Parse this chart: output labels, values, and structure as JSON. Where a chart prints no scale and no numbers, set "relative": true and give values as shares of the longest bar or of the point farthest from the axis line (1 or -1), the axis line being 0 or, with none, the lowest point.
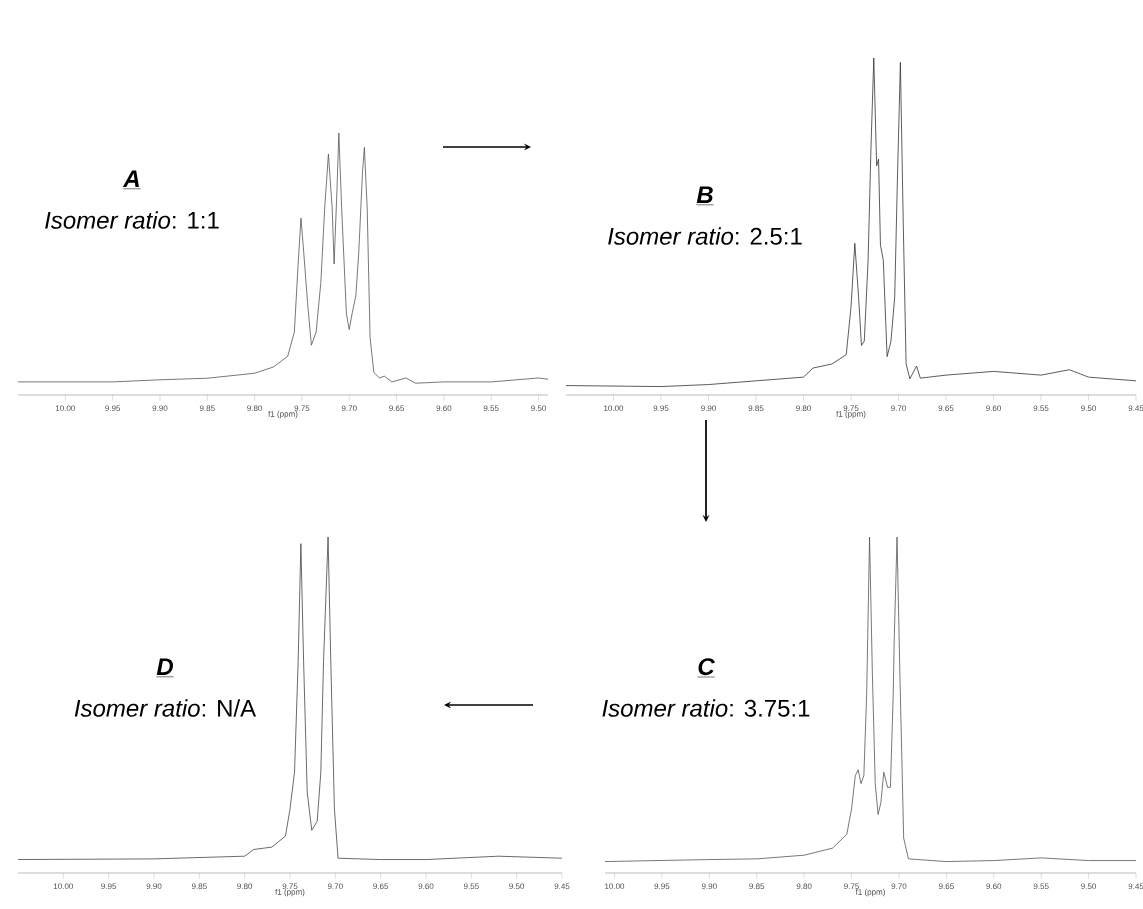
{
  "chart_data": [
    {
      "type": "line",
      "title": "A",
      "subtitle": "*Isomer ratio*: 1:1",
      "xlabel": "f1 (ppm)",
      "color": "#555555",
      "relative": true,
      "xlim": [
        10.05,
        9.49
      ],
      "xticks": [
        {
          "value": 10,
          "label": "10.00"
        },
        {
          "value": 9.95,
          "label": "9.95"
        },
        {
          "value": 9.9,
          "label": "9.90"
        },
        {
          "value": 9.85,
          "label": "9.85"
        },
        {
          "value": 9.8,
          "label": "9.80"
        },
        {
          "value": 9.75,
          "label": "9.75"
        },
        {
          "value": 9.7,
          "label": "9.70"
        },
        {
          "value": 9.65,
          "label": "9.65"
        },
        {
          "value": 9.6,
          "label": "9.60"
        },
        {
          "value": 9.55,
          "label": "9.55"
        },
        {
          "value": 9.5,
          "label": "9.50"
        }
      ],
      "x": [
        10.05,
        9.95,
        9.9,
        9.85,
        9.8,
        9.78,
        9.765,
        9.758,
        9.754,
        9.751,
        9.748,
        9.744,
        9.74,
        9.735,
        9.73,
        9.726,
        9.722,
        9.718,
        9.716,
        9.713,
        9.711,
        9.708,
        9.703,
        9.7,
        9.697,
        9.693,
        9.69,
        9.686,
        9.684,
        9.681,
        9.678,
        9.674,
        9.668,
        9.663,
        9.655,
        9.64,
        9.63,
        9.6,
        9.55,
        9.5,
        9.49
      ],
      "values": [
        0.05,
        0.05,
        0.058,
        0.064,
        0.083,
        0.107,
        0.148,
        0.24,
        0.5,
        0.675,
        0.54,
        0.35,
        0.19,
        0.24,
        0.43,
        0.71,
        0.92,
        0.71,
        0.5,
        0.78,
        1.0,
        0.71,
        0.31,
        0.25,
        0.31,
        0.38,
        0.54,
        0.85,
        0.945,
        0.71,
        0.22,
        0.086,
        0.065,
        0.072,
        0.05,
        0.065,
        0.045,
        0.05,
        0.05,
        0.065,
        0.06
      ]
    },
    {
      "type": "line",
      "title": "B",
      "subtitle": "*Isomer ratio*: 2.5:1",
      "xlabel": "f1 (ppm)",
      "color": "#333333",
      "relative": true,
      "xlim": [
        10.05,
        9.45
      ],
      "xticks": [
        {
          "value": 10,
          "label": "10.00"
        },
        {
          "value": 9.95,
          "label": "9.95"
        },
        {
          "value": 9.9,
          "label": "9.90"
        },
        {
          "value": 9.85,
          "label": "9.85"
        },
        {
          "value": 9.8,
          "label": "9.80"
        },
        {
          "value": 9.75,
          "label": "9.75"
        },
        {
          "value": 9.7,
          "label": "9.70"
        },
        {
          "value": 9.65,
          "label": "9.65"
        },
        {
          "value": 9.6,
          "label": "9.60"
        },
        {
          "value": 9.55,
          "label": "9.55"
        },
        {
          "value": 9.5,
          "label": "9.50"
        },
        {
          "value": 9.45,
          "label": "9.45"
        }
      ],
      "x": [
        10.05,
        9.95,
        9.9,
        9.85,
        9.8,
        9.79,
        9.77,
        9.755,
        9.75,
        9.746,
        9.742,
        9.739,
        9.736,
        9.732,
        9.729,
        9.726,
        9.723,
        9.721,
        9.719,
        9.716,
        9.712,
        9.708,
        9.704,
        9.701,
        9.698,
        9.695,
        9.692,
        9.688,
        9.681,
        9.677,
        9.65,
        9.6,
        9.55,
        9.52,
        9.5,
        9.45
      ],
      "values": [
        0.028,
        0.025,
        0.031,
        0.042,
        0.053,
        0.08,
        0.092,
        0.12,
        0.26,
        0.45,
        0.29,
        0.147,
        0.16,
        0.4,
        0.73,
        1.0,
        0.68,
        0.7,
        0.445,
        0.4,
        0.114,
        0.158,
        0.29,
        0.655,
        0.987,
        0.51,
        0.092,
        0.048,
        0.086,
        0.05,
        0.059,
        0.07,
        0.059,
        0.075,
        0.053,
        0.042
      ]
    },
    {
      "type": "line",
      "title": "D",
      "subtitle": "*Isomer ratio*: N/A",
      "xlabel": "f1 (ppm)",
      "color": "#444444",
      "relative": true,
      "xlim": [
        10.05,
        9.45
      ],
      "xticks": [
        {
          "value": 10,
          "label": "10.00"
        },
        {
          "value": 9.95,
          "label": "9.95"
        },
        {
          "value": 9.9,
          "label": "9.90"
        },
        {
          "value": 9.85,
          "label": "9.85"
        },
        {
          "value": 9.8,
          "label": "9.80"
        },
        {
          "value": 9.75,
          "label": "9.75"
        },
        {
          "value": 9.7,
          "label": "9.70"
        },
        {
          "value": 9.65,
          "label": "9.65"
        },
        {
          "value": 9.6,
          "label": "9.60"
        },
        {
          "value": 9.55,
          "label": "9.55"
        },
        {
          "value": 9.5,
          "label": "9.50"
        },
        {
          "value": 9.45,
          "label": "9.45"
        }
      ],
      "x": [
        10.05,
        9.9,
        9.8,
        9.79,
        9.77,
        9.755,
        9.75,
        9.745,
        9.741,
        9.738,
        9.735,
        9.731,
        9.726,
        9.72,
        9.716,
        9.713,
        9.708,
        9.705,
        9.701,
        9.697,
        9.65,
        9.6,
        9.52,
        9.45
      ],
      "values": [
        0.04,
        0.042,
        0.05,
        0.07,
        0.077,
        0.11,
        0.19,
        0.3,
        0.63,
        0.98,
        0.63,
        0.24,
        0.127,
        0.154,
        0.3,
        0.63,
        1.0,
        0.63,
        0.19,
        0.044,
        0.04,
        0.04,
        0.05,
        0.044
      ]
    },
    {
      "type": "line",
      "title": "C",
      "subtitle": "*Isomer ratio*: 3.75:1",
      "xlabel": "f1 (ppm)",
      "color": "#555555",
      "relative": true,
      "xlim": [
        10.01,
        9.45
      ],
      "xticks": [
        {
          "value": 10,
          "label": "10.00"
        },
        {
          "value": 9.95,
          "label": "9.95"
        },
        {
          "value": 9.9,
          "label": "9.90"
        },
        {
          "value": 9.85,
          "label": "9.85"
        },
        {
          "value": 9.8,
          "label": "9.80"
        },
        {
          "value": 9.75,
          "label": "9.75"
        },
        {
          "value": 9.7,
          "label": "9.70"
        },
        {
          "value": 9.65,
          "label": "9.65"
        },
        {
          "value": 9.6,
          "label": "9.60"
        },
        {
          "value": 9.55,
          "label": "9.55"
        },
        {
          "value": 9.5,
          "label": "9.50"
        },
        {
          "value": 9.45,
          "label": "9.45"
        }
      ],
      "x": [
        10.01,
        9.9,
        9.85,
        9.8,
        9.77,
        9.755,
        9.75,
        9.746,
        9.743,
        9.74,
        9.737,
        9.734,
        9.731,
        9.728,
        9.725,
        9.722,
        9.719,
        9.716,
        9.712,
        9.709,
        9.706,
        9.705,
        9.702,
        9.699,
        9.695,
        9.69,
        9.65,
        9.6,
        9.55,
        9.5,
        9.45
      ],
      "values": [
        0.034,
        0.04,
        0.042,
        0.053,
        0.074,
        0.115,
        0.19,
        0.29,
        0.307,
        0.266,
        0.29,
        0.535,
        1.0,
        0.59,
        0.266,
        0.174,
        0.21,
        0.3,
        0.255,
        0.255,
        0.535,
        0.69,
        1.0,
        0.59,
        0.104,
        0.042,
        0.034,
        0.037,
        0.045,
        0.037,
        0.037
      ]
    }
  ]
}
